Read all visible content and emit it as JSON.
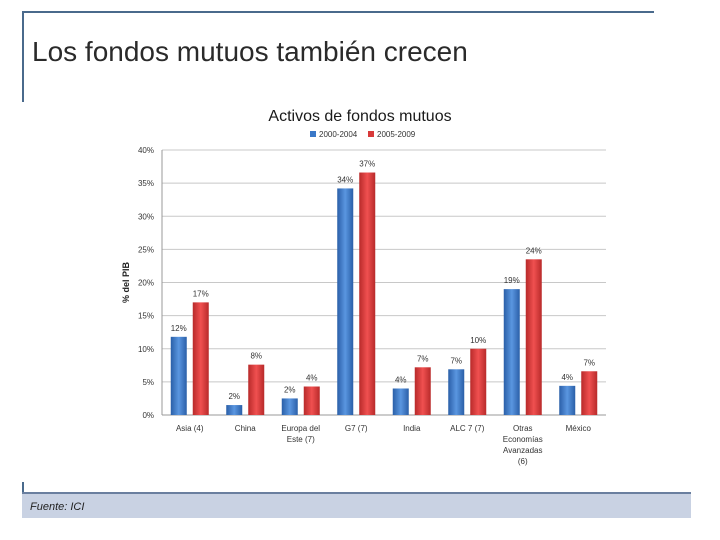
{
  "slide": {
    "title": "Los fondos mutuos también crecen"
  },
  "footer": {
    "source": "Fuente: ICI"
  },
  "colors": {
    "series1": "#3a78c8",
    "series2": "#d83a3a",
    "grid": "#c8c8c8",
    "frame": "#4a6a8c"
  },
  "chart_data": {
    "type": "bar",
    "title": "Activos de fondos mutuos",
    "ylabel": "% del PIB",
    "xlabel": "",
    "ylim": [
      0,
      40
    ],
    "yticks": [
      "0%",
      "5%",
      "10%",
      "15%",
      "20%",
      "25%",
      "30%",
      "35%",
      "40%"
    ],
    "ytick_values": [
      0,
      5,
      10,
      15,
      20,
      25,
      30,
      35,
      40
    ],
    "grid": true,
    "legend": "top-center",
    "categories": [
      [
        "Asia (4)"
      ],
      [
        "China"
      ],
      [
        "Europa del",
        "Este (7)"
      ],
      [
        "G7 (7)"
      ],
      [
        "India"
      ],
      [
        "ALC 7 (7)"
      ],
      [
        "Otras",
        "Economías",
        "Avanzadas",
        "(6)"
      ],
      [
        "México"
      ]
    ],
    "series": [
      {
        "name": "2000-2004",
        "values": [
          11.8,
          1.5,
          2.5,
          34.2,
          4.0,
          6.9,
          19.0,
          4.4
        ],
        "labels": [
          "12%",
          "2%",
          "2%",
          "34%",
          "4%",
          "7%",
          "19%",
          "4%"
        ]
      },
      {
        "name": "2005-2009",
        "values": [
          17.0,
          7.6,
          4.3,
          36.6,
          7.2,
          10.0,
          23.5,
          6.6
        ],
        "labels": [
          "17%",
          "8%",
          "4%",
          "37%",
          "7%",
          "10%",
          "24%",
          "7%"
        ]
      }
    ]
  }
}
